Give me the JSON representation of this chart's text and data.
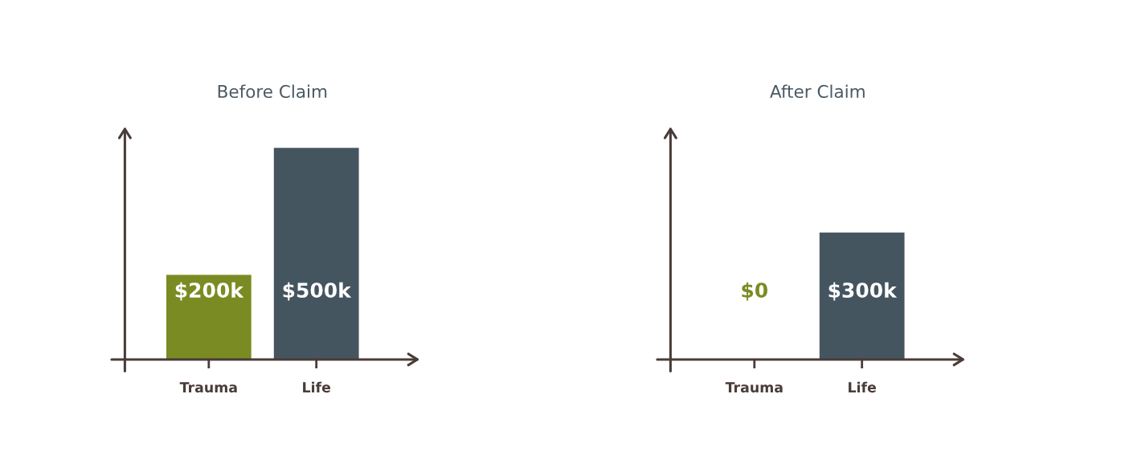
{
  "chart_data": [
    {
      "type": "bar",
      "title": "Before Claim",
      "categories": [
        "Trauma",
        "Life"
      ],
      "values": [
        200,
        500
      ],
      "colors": [
        "#7a8b23",
        "#455560"
      ],
      "value_labels": [
        "$200k",
        "$500k"
      ],
      "tick_labels": "x"
    },
    {
      "type": "bar",
      "title": "After Claim",
      "categories": [
        "Trauma",
        "Life"
      ],
      "values": [
        0,
        300
      ],
      "colors": [
        "#7a8b23",
        "#455560"
      ],
      "value_labels": [
        "$0",
        "$300k"
      ],
      "tick_labels": "x"
    }
  ]
}
